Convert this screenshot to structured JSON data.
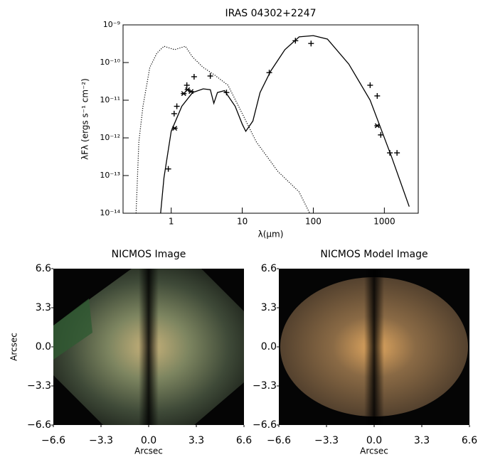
{
  "chart_data": [
    {
      "type": "line",
      "title": "IRAS 04302+2247",
      "xlabel": "λ(μm)",
      "ylabel": "λFλ (ergs s⁻¹ cm⁻²)",
      "xscale": "log",
      "yscale": "log",
      "xlim": [
        0.21,
        3000
      ],
      "ylim": [
        1e-14,
        1e-09
      ],
      "xticks": [
        1,
        10,
        100,
        1000
      ],
      "yticks": [
        {
          "value": 1e-14,
          "label": "10⁻¹⁴"
        },
        {
          "value": 1e-13,
          "label": "10⁻¹³"
        },
        {
          "value": 1e-12,
          "label": "10⁻¹²"
        },
        {
          "value": 1e-11,
          "label": "10⁻¹¹"
        },
        {
          "value": 1e-10,
          "label": "10⁻¹⁰"
        },
        {
          "value": 1e-09,
          "label": "10⁻⁹"
        }
      ],
      "series": [
        {
          "style": "solid",
          "color": "#000",
          "x": [
            0.71,
            0.79,
            1,
            1.41,
            2.0,
            2.82,
            3.55,
            3.98,
            4.47,
            5.62,
            7.94,
            10,
            11.2,
            14.1,
            17.8,
            25.1,
            39.8,
            63.1,
            100,
            158,
            316,
            631,
            1259,
            2239
          ],
          "values": [
            1e-14,
            8.7e-14,
            1.5e-12,
            6.9e-12,
            1.6e-11,
            2e-11,
            1.9e-11,
            8.3e-12,
            1.6e-11,
            1.8e-11,
            6.9e-12,
            2.3e-12,
            1.5e-12,
            2.8e-12,
            1.6e-11,
            5.9e-11,
            2.2e-10,
            4.8e-10,
            5.2e-10,
            4.2e-10,
            9.1e-11,
            1e-11,
            3.2e-13,
            1.5e-14
          ]
        },
        {
          "style": "dotted",
          "color": "#000",
          "x": [
            0.32,
            0.35,
            0.4,
            0.5,
            0.63,
            0.79,
            1.12,
            1.58,
            2.0,
            2.82,
            4,
            6.3,
            10,
            15.8,
            31.6,
            63,
            89
          ],
          "values": [
            1e-14,
            7.8e-13,
            6.9e-12,
            7.4e-11,
            1.8e-10,
            2.7e-10,
            2.2e-10,
            2.7e-10,
            1.4e-10,
            7.4e-11,
            4.8e-11,
            2.5e-11,
            4.4e-12,
            7.8e-13,
            1.3e-13,
            3.7e-14,
            1e-14
          ]
        },
        {
          "style": "plus",
          "color": "#000",
          "x": [
            0.91,
            1.1,
            1.2,
            1.66,
            2.1,
            3.55,
            6.0,
            24,
            56,
            93,
            631,
            794,
            891,
            1195,
            1507
          ],
          "values": [
            1.5e-13,
            4.4e-12,
            6.9e-12,
            2.5e-11,
            4.2e-11,
            4.4e-11,
            1.6e-11,
            5.4e-11,
            3.8e-10,
            3.2e-10,
            2.5e-11,
            1.3e-11,
            1.2e-12,
            4e-13,
            4e-13
          ]
        },
        {
          "style": "asterisk",
          "color": "#000",
          "x": [
            1.12,
            1.5,
            1.7,
            1.9,
            794
          ],
          "values": [
            1.8e-12,
            1.5e-11,
            1.9e-11,
            1.7e-11,
            2.1e-12
          ]
        }
      ]
    },
    {
      "type": "image",
      "title": "NICMOS Image",
      "xlabel": "Arcsec",
      "ylabel": "Arcsec",
      "xlim": [
        -6.6,
        6.6
      ],
      "ylim": [
        -6.6,
        6.6
      ],
      "xticks": [
        {
          "value": -6.6,
          "label": "−6.6"
        },
        {
          "value": -3.3,
          "label": "−3.3"
        },
        {
          "value": 0,
          "label": "0.0"
        },
        3.3,
        6.6
      ],
      "yticks": [
        {
          "value": -6.6,
          "label": "−6.6"
        },
        {
          "value": -3.3,
          "label": "−3.3"
        },
        {
          "value": 0,
          "label": "0.0"
        },
        3.3,
        6.6
      ]
    },
    {
      "type": "image",
      "title": "NICMOS Model Image",
      "xlabel": "Arcsec",
      "xlim": [
        -6.6,
        6.6
      ],
      "ylim": [
        -6.6,
        6.6
      ],
      "xticks": [
        {
          "value": -6.6,
          "label": "−6.6"
        },
        {
          "value": -3.3,
          "label": "−3.3"
        },
        {
          "value": 0,
          "label": "0.0"
        },
        3.3,
        6.6
      ],
      "yticks": [
        {
          "value": -6.6,
          "label": "−6.6"
        },
        {
          "value": -3.3,
          "label": "−3.3"
        },
        {
          "value": 0,
          "label": "0.0"
        },
        3.3,
        6.6
      ]
    }
  ]
}
